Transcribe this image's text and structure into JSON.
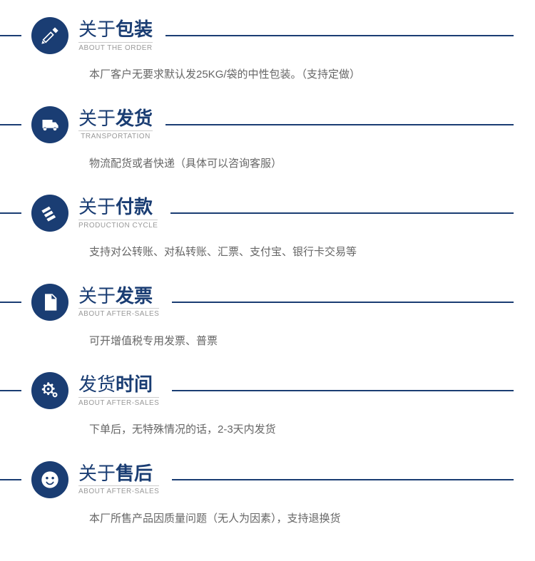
{
  "colors": {
    "primary": "#1a3d73",
    "text_muted": "#666666",
    "subtitle": "#999999",
    "bg": "#ffffff"
  },
  "sections": [
    {
      "icon": "pencil-ruler",
      "title_prefix": "关于",
      "title_bold": "包装",
      "subtitle_en": "ABOUT THE ORDER",
      "body": "本厂客户无要求默认发25KG/袋的中性包装。（支持定做）"
    },
    {
      "icon": "truck",
      "title_prefix": "关于",
      "title_bold": "发货",
      "subtitle_en": "TRANSPORTATION",
      "body": "物流配货或者快递（具体可以咨询客服）"
    },
    {
      "icon": "cards",
      "title_prefix": "关于",
      "title_bold": "付款",
      "subtitle_en": "PRODUCTION CYCLE",
      "body": "支持对公转账、对私转账、汇票、支付宝、银行卡交易等"
    },
    {
      "icon": "file",
      "title_prefix": "关于",
      "title_bold": "发票",
      "subtitle_en": "ABOUT AFTER-SALES",
      "body": "可开增值税专用发票、普票"
    },
    {
      "icon": "gears",
      "title_prefix": "发货",
      "title_bold": "时间",
      "subtitle_en": "ABOUT AFTER-SALES",
      "body": "下单后，无特殊情况的话，2-3天内发货"
    },
    {
      "icon": "face",
      "title_prefix": "关于",
      "title_bold": "售后",
      "subtitle_en": "ABOUT AFTER-SALES",
      "body": "本厂所售产品因质量问题（无人为因素），支持退换货"
    }
  ]
}
